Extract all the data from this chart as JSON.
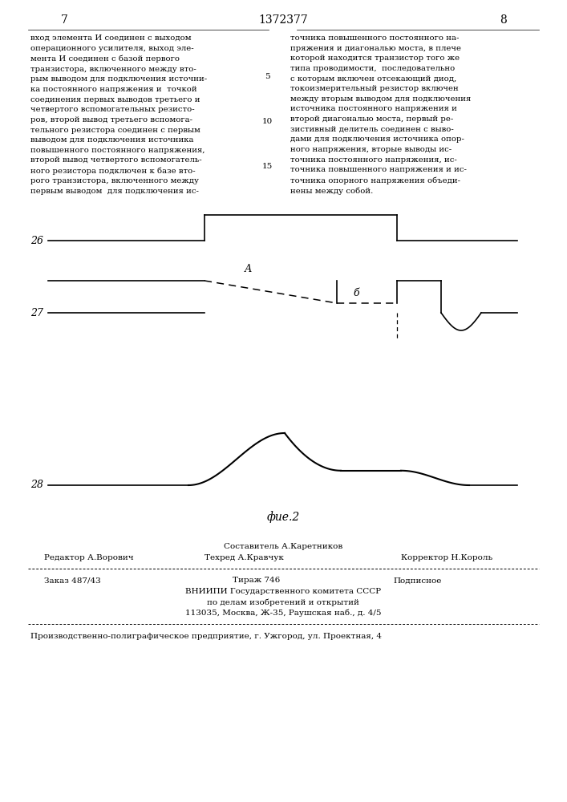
{
  "page_number_left": "7",
  "page_number_center": "1372377",
  "page_number_right": "8",
  "text_left": "вход элемента И соединен с выходом\nоперационного усилителя, выход эле-\nмента И соединен с базой первого\nтранзистора, включенного между вто-\nрым выводом для подключения источни-\nка постоянного напряжения и  точкой\nсоединения первых выводов третьего и\nчетвертого вспомогательных резисто-\nров, второй вывод третьего вспомога-\nтельного резистора соединен с первым\nвыводом для подключения источника\nповышенного постоянного напряжения,\nвторой вывод четвертого вспомогатель-\nного резистора подключен к базе вто-\nрого транзистора, включенного между\nпервым выводом  для подключения ис-",
  "text_right": "точника повышенного постоянного на-\nпряжения и диагональю моста, в плече\nкоторой находится транзистор того же\nтипа проводимости,  последовательно\nс которым включен отсекающий диод,\nтокоизмерительный резистор включен\nмежду вторым выводом для подключения\nисточника постоянного напряжения и\nвторой диагональю моста, первый ре-\nзистивный делитель соединен с выво-\nдами для подключения источника опор-\nного напряжения, вторые выводы ис-\nточника постоянного напряжения, ис-\nточника повышенного напряжения и ис-\nточника опорного напряжения объеди-\nнены между собой.",
  "label_26": "26",
  "label_27": "27",
  "label_28": "28",
  "label_A": "А",
  "label_b": "б",
  "fig_label": "фие.2",
  "footer_sestavitel": "Составитель А.Каретников",
  "footer_redaktor": "Редактор А.Ворович",
  "footer_tehred": "Техред А.Кравчук",
  "footer_korrektor": "Корректор Н.Король",
  "footer_zakaz": "Заказ 487/43",
  "footer_tirazh": "Тираж 746",
  "footer_podpisnoe": "Подписное",
  "footer_vniip1": "ВНИИПИ Государственного комитета СССР",
  "footer_vniip2": "по делам изобретений и открытий",
  "footer_vniip3": "113035, Москва, Ж-35, Раушская наб., д. 4/5",
  "footer_proizv": "Производственно-полиграфическое предприятие, г. Ужгород, ул. Проектная, 4",
  "bg_color": "#ffffff",
  "text_color": "#000000"
}
